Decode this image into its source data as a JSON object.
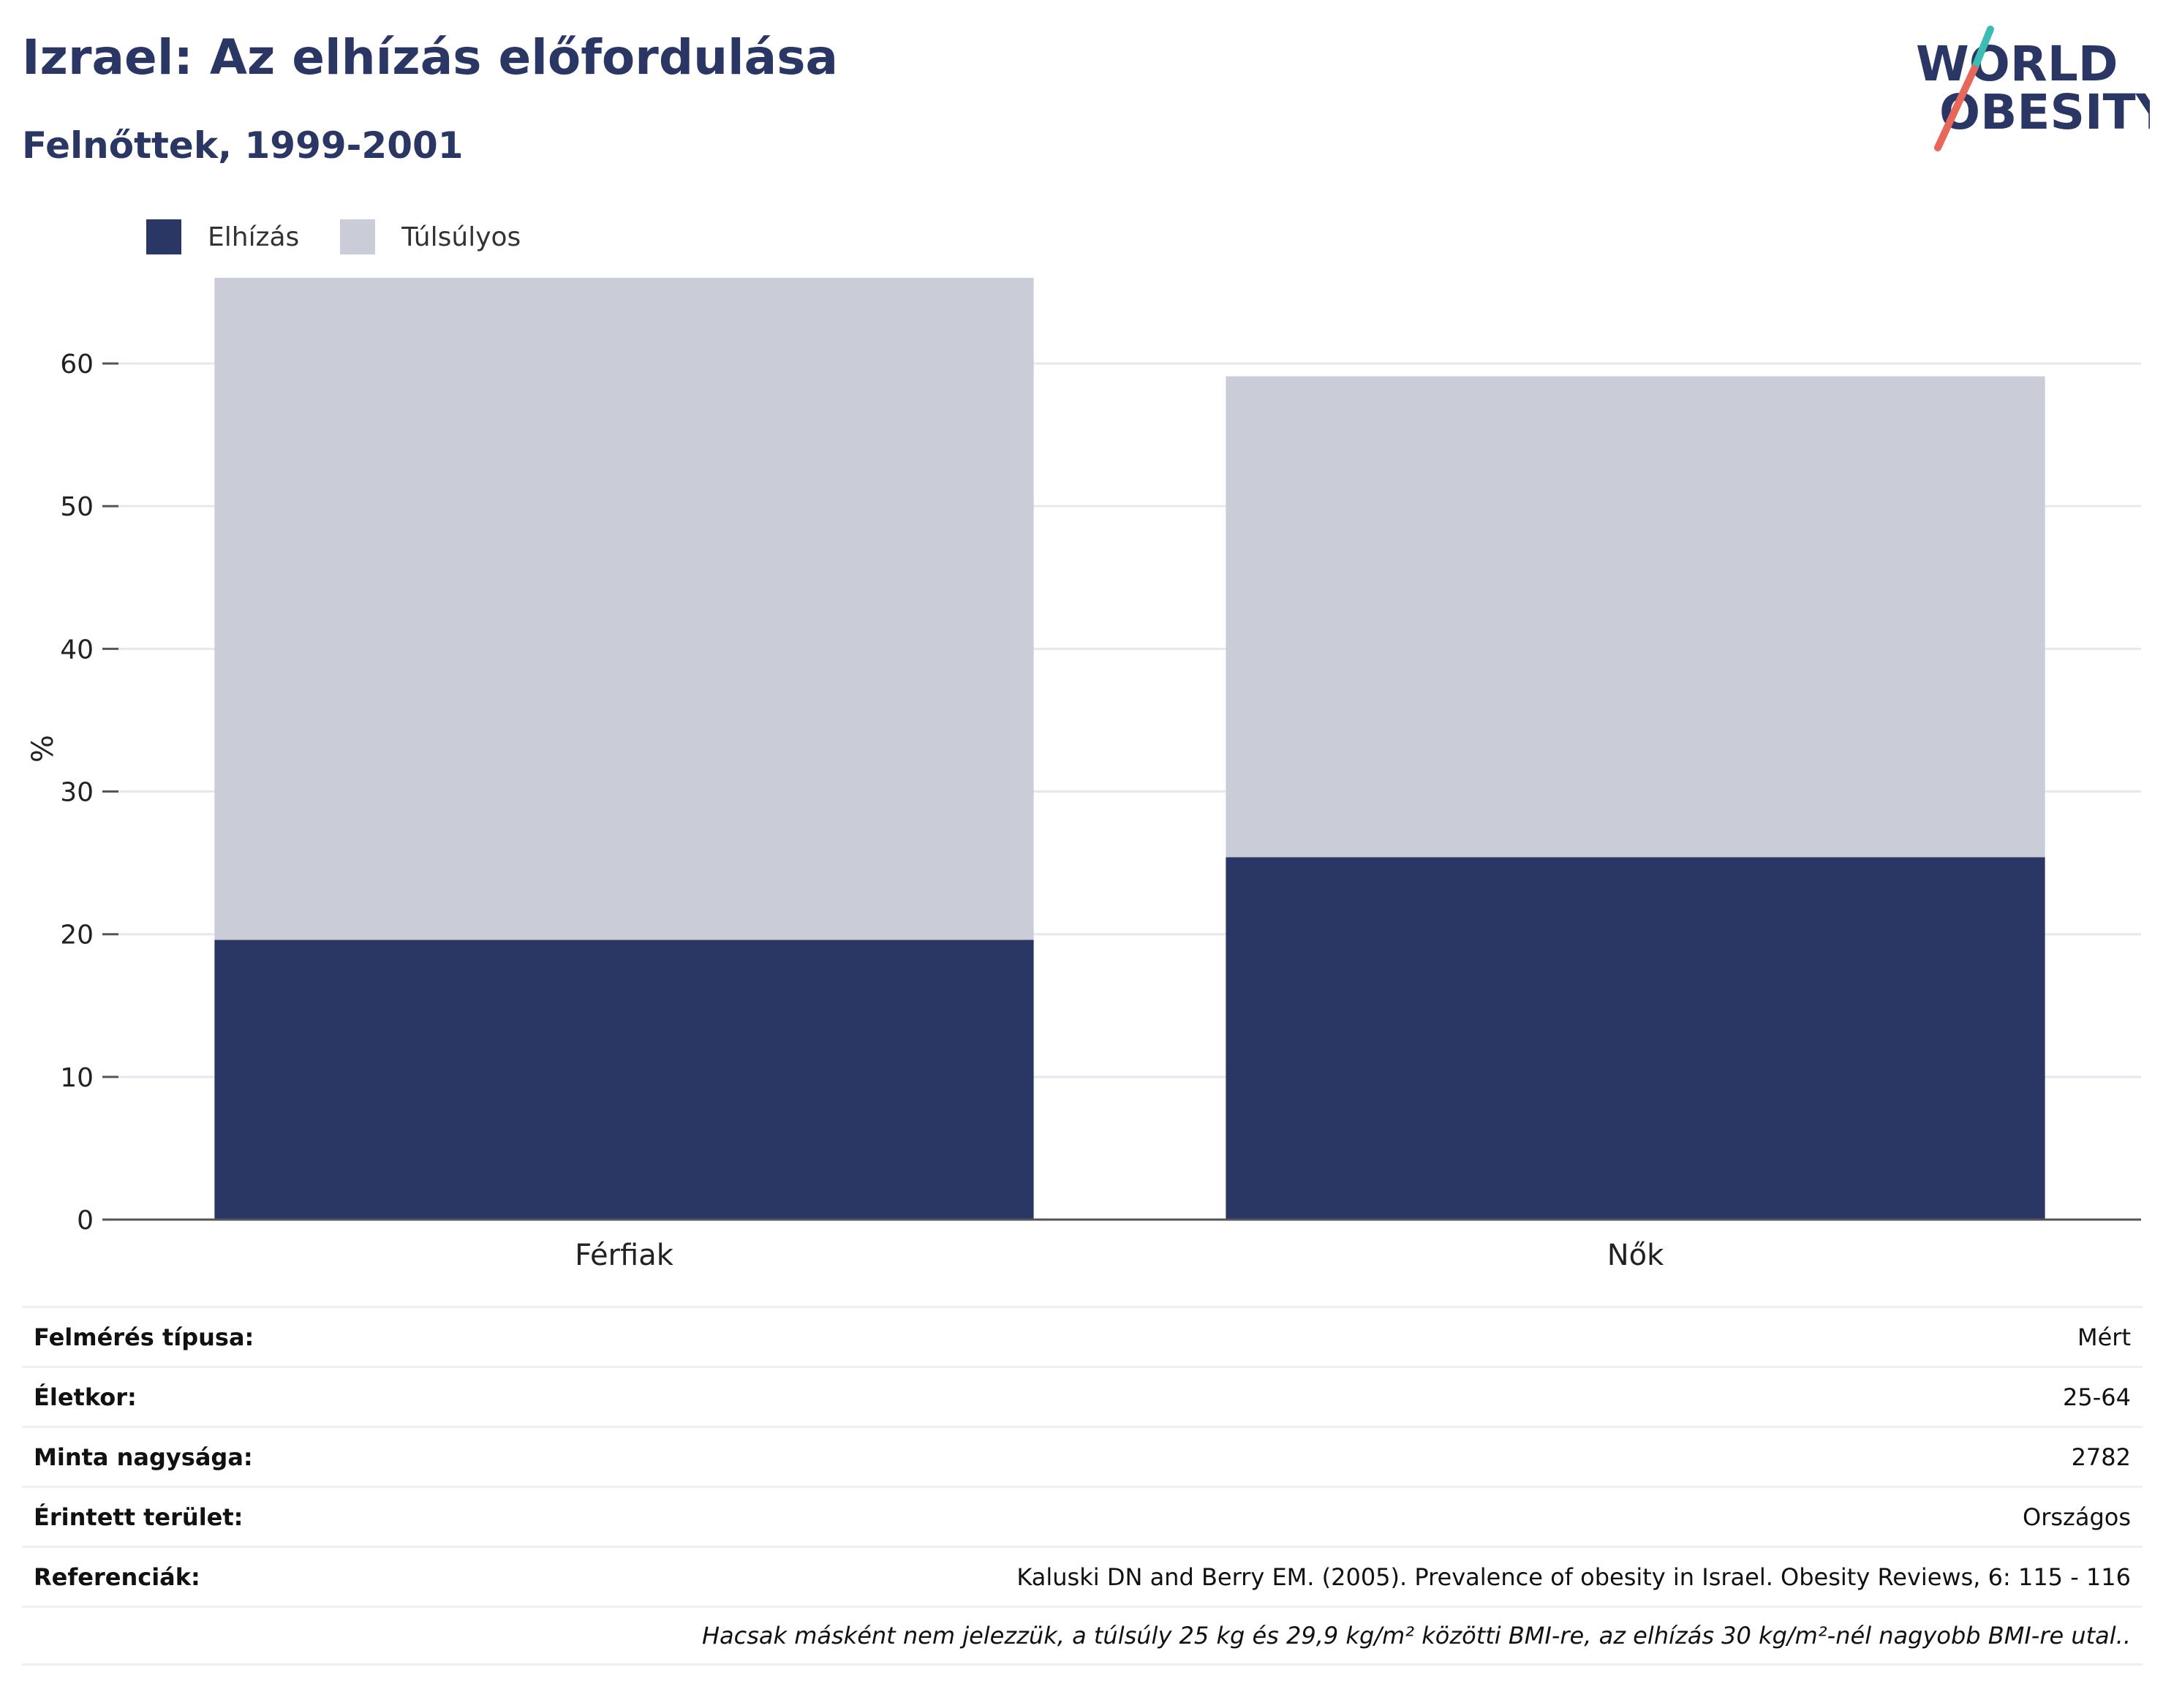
{
  "header": {
    "title": "Izrael: Az elhízás előfordulása",
    "subtitle": "Felnőttek, 1999-2001"
  },
  "logo": {
    "line1": "WORLD",
    "line2": "OBESITY"
  },
  "colors": {
    "obese": "#2a3664",
    "overweight": "#cacdd8",
    "grid": "#e6e8ee",
    "axis": "#555555"
  },
  "legend": {
    "items": [
      "Elhízás",
      "Túlsúlyos"
    ],
    "placement": "top-left"
  },
  "chart_data": {
    "type": "bar",
    "stacked": true,
    "categories": [
      "Férfiak",
      "Nők"
    ],
    "series": [
      {
        "name": "Elhízás",
        "values": [
          19.6,
          25.4
        ]
      },
      {
        "name": "Túlsúlyos",
        "values": [
          46.4,
          33.7
        ]
      }
    ],
    "ylabel": "%",
    "ylim": [
      0,
      66
    ],
    "yticks": [
      0,
      10,
      20,
      30,
      40,
      50,
      60
    ],
    "grid": true
  },
  "meta": {
    "rows": [
      {
        "label": "Felmérés típusa:",
        "value": "Mért"
      },
      {
        "label": "Életkor:",
        "value": "25-64"
      },
      {
        "label": "Minta nagysága:",
        "value": "2782"
      },
      {
        "label": "Érintett terület:",
        "value": "Országos"
      },
      {
        "label": "Referenciák:",
        "value": "Kaluski DN and Berry EM. (2005). Prevalence of obesity in Israel. Obesity Reviews, 6: 115 - 116"
      }
    ],
    "note": "Hacsak másként nem jelezzük, a túlsúly 25 kg és 29,9 kg/m² közötti BMI-re, az elhízás 30 kg/m²-nél nagyobb BMI-re utal.."
  }
}
